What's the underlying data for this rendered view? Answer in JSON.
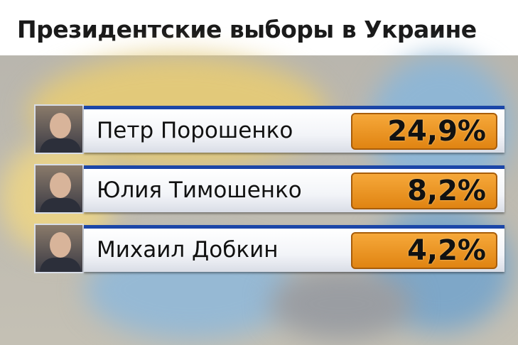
{
  "title": "Президентские выборы в Украине",
  "chart_data": {
    "type": "table",
    "title": "Президентские выборы в Украине",
    "rows": [
      {
        "name": "Петр Порошенко",
        "value": "24,9%"
      },
      {
        "name": "Юлия Тимошенко",
        "value": "8,2%"
      },
      {
        "name": "Михаил Добкин",
        "value": "4,2%"
      }
    ]
  },
  "colors": {
    "accent_bar": "#1b46a8",
    "value_box": "#f0961f"
  }
}
